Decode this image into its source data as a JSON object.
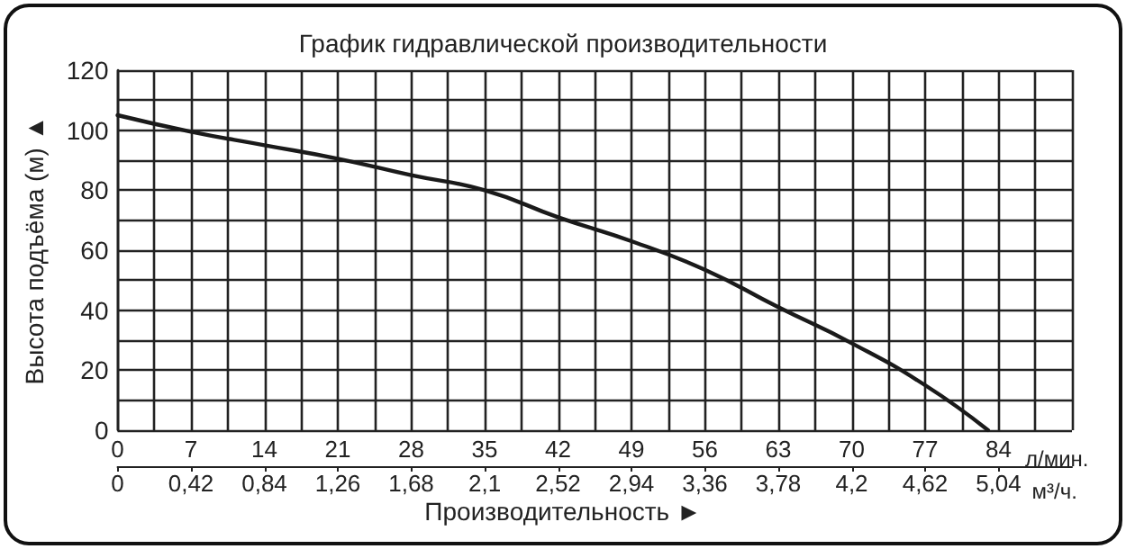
{
  "chart_data": {
    "type": "line",
    "title": "График гидравлической производительности",
    "ylabel": "Высота подъёма (м) ▲",
    "xlabel": "л/мин.",
    "x2label": "м³/ч.",
    "annotations": [
      "Производительность ►"
    ],
    "series": [
      {
        "color": "#1a1a1a",
        "x": [
          0,
          7,
          14,
          21,
          28,
          35,
          42,
          49,
          56,
          63,
          70,
          77,
          83
        ],
        "values": [
          105,
          99.5,
          95,
          90.5,
          85,
          80,
          71,
          63,
          53.5,
          41,
          29,
          15,
          0
        ]
      }
    ],
    "xlim": [
      0,
      91
    ],
    "xticks": [
      0,
      7,
      14,
      21,
      28,
      35,
      42,
      49,
      56,
      63,
      70,
      77,
      84
    ],
    "x2lim": [
      0,
      5.46
    ],
    "x2ticks": [
      0,
      {
        "value": 0.42,
        "label": "0,42"
      },
      {
        "value": 0.84,
        "label": "0,84"
      },
      {
        "value": 1.26,
        "label": "1,26"
      },
      {
        "value": 1.68,
        "label": "1,68"
      },
      {
        "value": 2.1,
        "label": "2,1"
      },
      {
        "value": 2.52,
        "label": "2,52"
      },
      {
        "value": 2.94,
        "label": "2,94"
      },
      {
        "value": 3.36,
        "label": "3,36"
      },
      {
        "value": 3.78,
        "label": "3,78"
      },
      {
        "value": 4.2,
        "label": "4,2"
      },
      {
        "value": 4.62,
        "label": "4,62"
      },
      {
        "value": 5.04,
        "label": "5,04"
      }
    ],
    "ylim": [
      0,
      120
    ],
    "yticks": [
      0,
      20,
      40,
      60,
      80,
      100,
      120
    ],
    "grid": true,
    "marker": "none",
    "line_style": "solid"
  }
}
